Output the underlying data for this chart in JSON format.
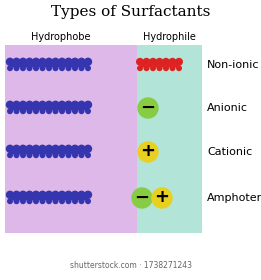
{
  "title": "Types of Surfactants",
  "title_fontsize": 11,
  "col_label_left": "Hydrophobe",
  "col_label_right": "Hydrophile",
  "col_label_fontsize": 7,
  "row_labels": [
    "Non-ionic",
    "Anionic",
    "Cationic",
    "Amphoteric"
  ],
  "row_label_fontsize": 8,
  "bg_left_color": "#ddb8e8",
  "bg_right_color": "#b2e4d8",
  "hydrophobe_color": "#3535b0",
  "hydrophile_color_nonionic": "#dd2222",
  "charge_neg_color": "#88cc44",
  "charge_pos_color": "#e8d020",
  "watermark": "shutterstock.com · 1738271243",
  "watermark_fontsize": 5.5,
  "fig_width": 2.61,
  "fig_height": 2.8,
  "dpi": 100
}
